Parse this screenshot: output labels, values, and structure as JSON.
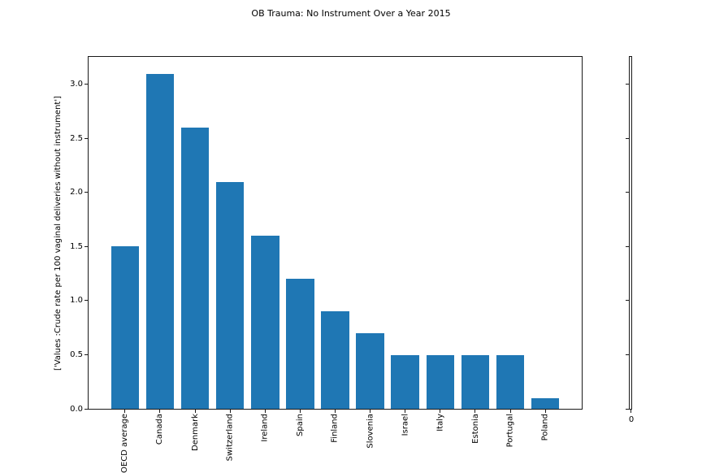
{
  "chart_data": {
    "type": "bar",
    "title": "OB Trauma: No Instrument Over a Year 2015",
    "ylabel": "['Values :Crude rate per 100 vaginal deliveries without instrument']",
    "xlabel": "",
    "categories": [
      "OECD average",
      "Canada",
      "Denmark",
      "Switzerland",
      "Ireland",
      "Spain",
      "Finland",
      "Slovenia",
      "Israel",
      "Italy",
      "Estonia",
      "Portugal",
      "Poland"
    ],
    "values": [
      1.5,
      3.1,
      2.6,
      2.1,
      1.6,
      1.2,
      0.9,
      0.7,
      0.5,
      0.5,
      0.5,
      0.5,
      0.1
    ],
    "ylim": [
      0,
      3.255
    ],
    "xlim": [
      -1.04,
      13.04
    ],
    "yticks": [
      0.0,
      0.5,
      1.0,
      1.5,
      2.0,
      2.5,
      3.0
    ],
    "ytick_labels": [
      "0.0",
      "0.5",
      "1.0",
      "1.5",
      "2.0",
      "2.5",
      "3.0"
    ],
    "bar_color": "#1f77b4",
    "bar_width_frac": 0.8,
    "grid": "off",
    "legend": "off",
    "xtick_label_rotation_deg": 90,
    "secondary_axis": {
      "description": "empty narrow twin axes at right with matching y ticks",
      "bottom_label": "0"
    }
  }
}
